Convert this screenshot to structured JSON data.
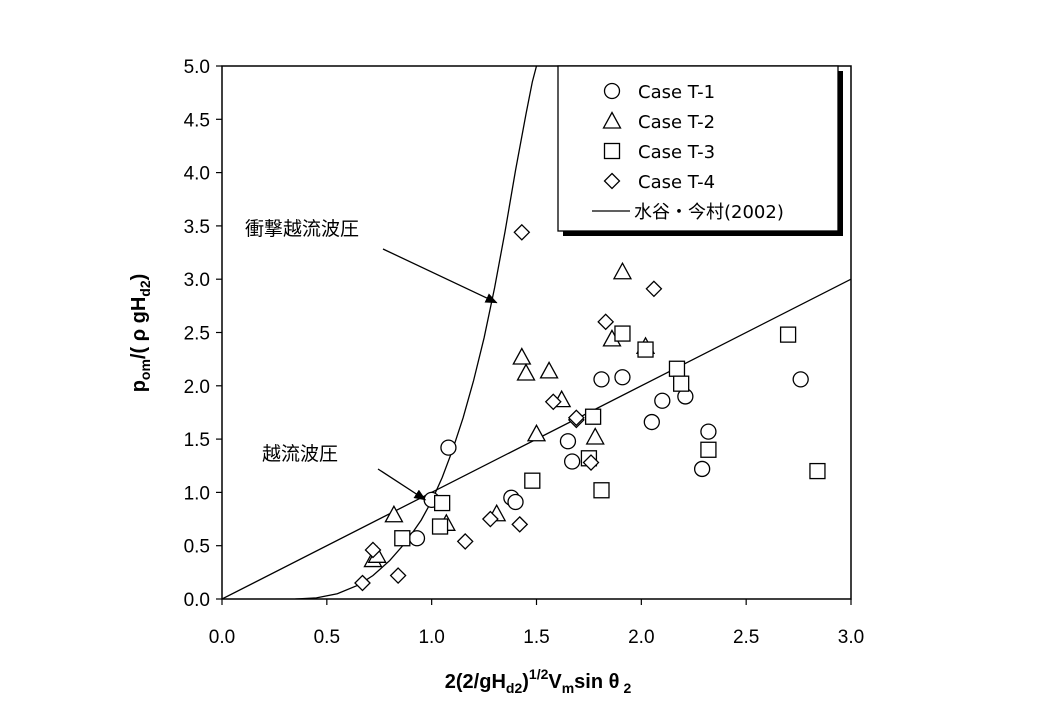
{
  "chart_data": {
    "type": "scatter",
    "title": "",
    "xlabel": {
      "main": "2(2/gH",
      "sub1": "d2",
      "p1": ")",
      "sup": "1/2",
      "p2": "V",
      "sub2": "m",
      "p3": "sin θ",
      "sub3": "2"
    },
    "ylabel": {
      "main": "p",
      "sub1": "om",
      "p1": "/( ρ gH",
      "sub2": "d2",
      "p2": ")"
    },
    "xlim": [
      0,
      3
    ],
    "ylim": [
      0,
      5
    ],
    "xticks": [
      "0.0",
      "0.5",
      "1.0",
      "1.5",
      "2.0",
      "2.5",
      "3.0"
    ],
    "yticks": [
      "0.0",
      "0.5",
      "1.0",
      "1.5",
      "2.0",
      "2.5",
      "3.0",
      "3.5",
      "4.0",
      "4.5",
      "5.0"
    ],
    "grid": false,
    "legend_position": "top-right",
    "series": [
      {
        "name": "Case T-1",
        "marker": "circle",
        "points": [
          [
            0.93,
            0.57
          ],
          [
            1.0,
            0.93
          ],
          [
            1.08,
            1.42
          ],
          [
            1.38,
            0.95
          ],
          [
            1.4,
            0.91
          ],
          [
            1.65,
            1.48
          ],
          [
            1.67,
            1.29
          ],
          [
            1.81,
            2.06
          ],
          [
            1.91,
            2.08
          ],
          [
            2.05,
            1.66
          ],
          [
            2.1,
            1.86
          ],
          [
            2.21,
            1.9
          ],
          [
            2.29,
            1.22
          ],
          [
            2.32,
            1.57
          ],
          [
            2.76,
            2.06
          ]
        ]
      },
      {
        "name": "Case T-2",
        "marker": "triangle",
        "points": [
          [
            0.72,
            0.37
          ],
          [
            0.74,
            0.41
          ],
          [
            0.82,
            0.79
          ],
          [
            1.07,
            0.71
          ],
          [
            1.31,
            0.8
          ],
          [
            1.43,
            2.27
          ],
          [
            1.45,
            2.12
          ],
          [
            1.5,
            1.55
          ],
          [
            1.56,
            2.14
          ],
          [
            1.62,
            1.87
          ],
          [
            1.78,
            1.52
          ],
          [
            1.86,
            2.44
          ],
          [
            1.91,
            3.07
          ],
          [
            2.02,
            2.37
          ]
        ]
      },
      {
        "name": "Case T-3",
        "marker": "square",
        "points": [
          [
            0.86,
            0.57
          ],
          [
            1.04,
            0.68
          ],
          [
            1.05,
            0.9
          ],
          [
            1.48,
            1.11
          ],
          [
            1.75,
            1.32
          ],
          [
            1.77,
            1.71
          ],
          [
            1.81,
            1.02
          ],
          [
            1.91,
            2.49
          ],
          [
            2.02,
            2.34
          ],
          [
            2.17,
            2.16
          ],
          [
            2.19,
            2.02
          ],
          [
            2.32,
            1.4
          ],
          [
            2.7,
            2.48
          ],
          [
            2.84,
            1.2
          ]
        ]
      },
      {
        "name": "Case T-4",
        "marker": "diamond",
        "points": [
          [
            0.67,
            0.15
          ],
          [
            0.72,
            0.46
          ],
          [
            0.84,
            0.22
          ],
          [
            1.16,
            0.54
          ],
          [
            1.28,
            0.75
          ],
          [
            1.42,
            0.7
          ],
          [
            1.43,
            3.44
          ],
          [
            1.58,
            1.85
          ],
          [
            1.69,
            1.68
          ],
          [
            1.69,
            1.7
          ],
          [
            1.76,
            1.28
          ],
          [
            1.83,
            2.6
          ],
          [
            2.06,
            2.91
          ]
        ]
      },
      {
        "name": "水谷・今村(2002)",
        "marker": "line",
        "lines": [
          [
            [
              0,
              0
            ],
            [
              3,
              3
            ]
          ],
          [
            [
              0.35,
              0
            ],
            [
              0.45,
              0.01
            ],
            [
              0.55,
              0.05
            ],
            [
              0.65,
              0.13
            ],
            [
              0.72,
              0.22
            ],
            [
              0.8,
              0.36
            ],
            [
              0.88,
              0.54
            ],
            [
              0.95,
              0.74
            ],
            [
              1.0,
              0.92
            ],
            [
              1.05,
              1.14
            ],
            [
              1.1,
              1.4
            ],
            [
              1.15,
              1.7
            ],
            [
              1.2,
              2.05
            ],
            [
              1.25,
              2.45
            ],
            [
              1.3,
              2.92
            ],
            [
              1.35,
              3.45
            ],
            [
              1.4,
              4.02
            ],
            [
              1.45,
              4.55
            ],
            [
              1.48,
              4.85
            ],
            [
              1.5,
              5.0
            ]
          ]
        ]
      }
    ],
    "annotations": [
      {
        "text": "衝撃越流波圧",
        "target": [
          1.31,
          2.78
        ]
      },
      {
        "text": "越流波圧",
        "target": [
          0.97,
          0.93
        ]
      }
    ]
  }
}
